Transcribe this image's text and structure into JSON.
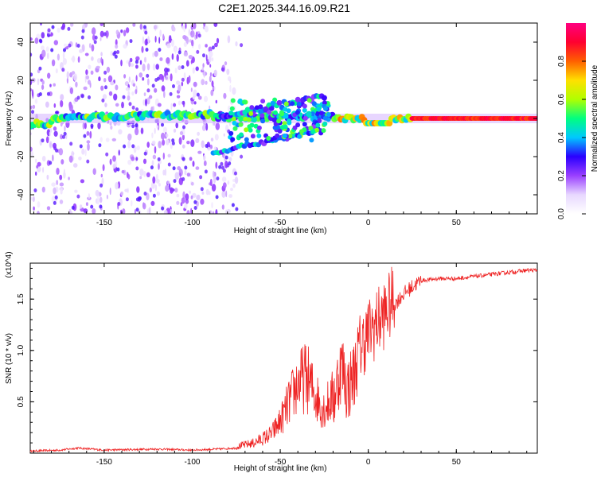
{
  "title": "C2E1.2025.344.16.09.R21",
  "chart_data": [
    {
      "type": "heatmap",
      "name": "spectrogram",
      "xlabel": "Height of straight line (km)",
      "ylabel": "Frequency (Hz)",
      "xlim": [
        -192,
        96
      ],
      "ylim": [
        -50,
        50
      ],
      "xticks": [
        -150,
        -100,
        -50,
        0,
        50
      ],
      "yticks": [
        -40,
        -20,
        0,
        20,
        40
      ],
      "colorbar": {
        "label": "Normalized spectral amplitude",
        "range": [
          0,
          1
        ],
        "ticks": [
          0.0,
          0.2,
          0.4,
          0.6,
          0.8
        ],
        "tick_labels": [
          "0.0",
          "0.2",
          "0.4",
          "0.6",
          "0.8"
        ],
        "colormap": [
          "#ffffff",
          "#e8d8ff",
          "#9a40ff",
          "#2a00ff",
          "#00c8ff",
          "#00ff80",
          "#b0ff00",
          "#ffe000",
          "#ff6000",
          "#ff0030",
          "#ff0080"
        ]
      },
      "features": [
        {
          "name": "main-line",
          "x_range": [
            -192,
            96
          ],
          "freq": 0,
          "amplitude": 0.7
        },
        {
          "name": "upper-branch",
          "x_range": [
            -85,
            -25
          ],
          "freq_range": [
            0,
            12
          ],
          "amplitude": 0.35
        },
        {
          "name": "lower-branch",
          "x_range": [
            -88,
            -28
          ],
          "freq_range": [
            -18,
            -6
          ],
          "amplitude": 0.3
        }
      ]
    },
    {
      "type": "line",
      "name": "snr",
      "xlabel": "Height of straight line (km)",
      "ylabel": "SNR (10 * v/v)",
      "y_multiplier": "(x10^4)",
      "xlim": [
        -192,
        96
      ],
      "ylim": [
        0,
        1.85
      ],
      "xticks": [
        -150,
        -100,
        -50,
        0,
        50
      ],
      "yticks": [
        0.5,
        1.0,
        1.5
      ],
      "ytick_labels": [
        "0.5",
        "1.0",
        "1.5"
      ],
      "color": "#ee2222",
      "series": [
        {
          "name": "SNR",
          "x": [
            -192,
            -175,
            -165,
            -150,
            -120,
            -100,
            -85,
            -75,
            -65,
            -55,
            -50,
            -45,
            -40,
            -35,
            -30,
            -25,
            -20,
            -15,
            -12,
            -8,
            -5,
            0,
            5,
            10,
            15,
            20,
            25,
            30,
            40,
            50,
            60,
            70,
            80,
            90,
            96
          ],
          "y": [
            0.02,
            0.03,
            0.05,
            0.03,
            0.04,
            0.03,
            0.04,
            0.05,
            0.08,
            0.15,
            0.25,
            0.4,
            0.55,
            0.6,
            0.45,
            0.35,
            0.45,
            0.8,
            0.55,
            0.7,
            0.95,
            1.1,
            1.2,
            1.3,
            1.45,
            1.55,
            1.62,
            1.68,
            1.7,
            1.7,
            1.72,
            1.74,
            1.76,
            1.78,
            1.78
          ]
        }
      ]
    }
  ]
}
